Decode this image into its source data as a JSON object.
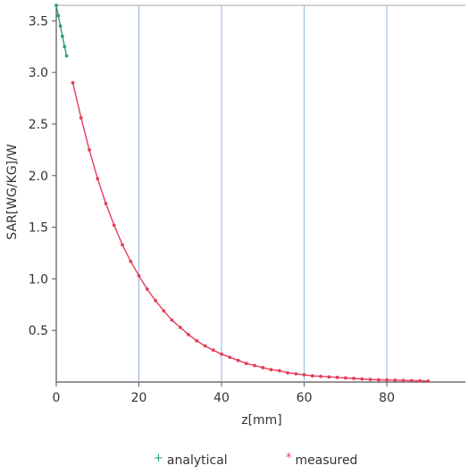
{
  "chart_data": {
    "type": "line",
    "title": "",
    "xlabel": "z[mm]",
    "ylabel": "SAR[WG/KG]/W",
    "xlim": [
      0,
      99
    ],
    "ylim": [
      0,
      3.65
    ],
    "xticks": [
      0,
      20,
      40,
      60,
      80
    ],
    "xtick_labels": [
      "0",
      "20",
      "40",
      "60",
      "80"
    ],
    "yticks": [
      0.5,
      1.0,
      1.5,
      2.0,
      2.5,
      3.0,
      3.5
    ],
    "ytick_labels": [
      "0.5",
      "1.0",
      "1.5",
      "2.0",
      "2.5",
      "3.0",
      "3.5"
    ],
    "grid": {
      "x": true,
      "y": false
    },
    "legend_position": "bottom",
    "series": [
      {
        "name": "analytical",
        "color": "#2e9e7a",
        "x": [
          0,
          0.5,
          1.0,
          1.5,
          2.0,
          2.5
        ],
        "y": [
          3.65,
          3.55,
          3.45,
          3.35,
          3.25,
          3.16
        ]
      },
      {
        "name": "measured",
        "color": "#e83c5a",
        "x": [
          4,
          6,
          8,
          10,
          12,
          14,
          16,
          18,
          20,
          22,
          24,
          26,
          28,
          30,
          32,
          34,
          36,
          38,
          40,
          42,
          44,
          46,
          48,
          50,
          52,
          54,
          56,
          58,
          60,
          62,
          64,
          66,
          68,
          70,
          72,
          74,
          76,
          78,
          80,
          82,
          84,
          86,
          88,
          90
        ],
        "y": [
          2.9,
          2.56,
          2.25,
          1.97,
          1.73,
          1.52,
          1.33,
          1.17,
          1.03,
          0.9,
          0.79,
          0.69,
          0.6,
          0.53,
          0.46,
          0.4,
          0.35,
          0.31,
          0.27,
          0.24,
          0.21,
          0.18,
          0.16,
          0.14,
          0.12,
          0.11,
          0.09,
          0.08,
          0.07,
          0.06,
          0.055,
          0.05,
          0.045,
          0.04,
          0.035,
          0.03,
          0.025,
          0.022,
          0.02,
          0.018,
          0.016,
          0.014,
          0.012,
          0.01
        ]
      }
    ],
    "legend": [
      {
        "label": "analytical",
        "marker": "+",
        "color": "#2e9e7a"
      },
      {
        "label": "measured",
        "marker": "*",
        "color": "#e83c5a"
      }
    ]
  }
}
